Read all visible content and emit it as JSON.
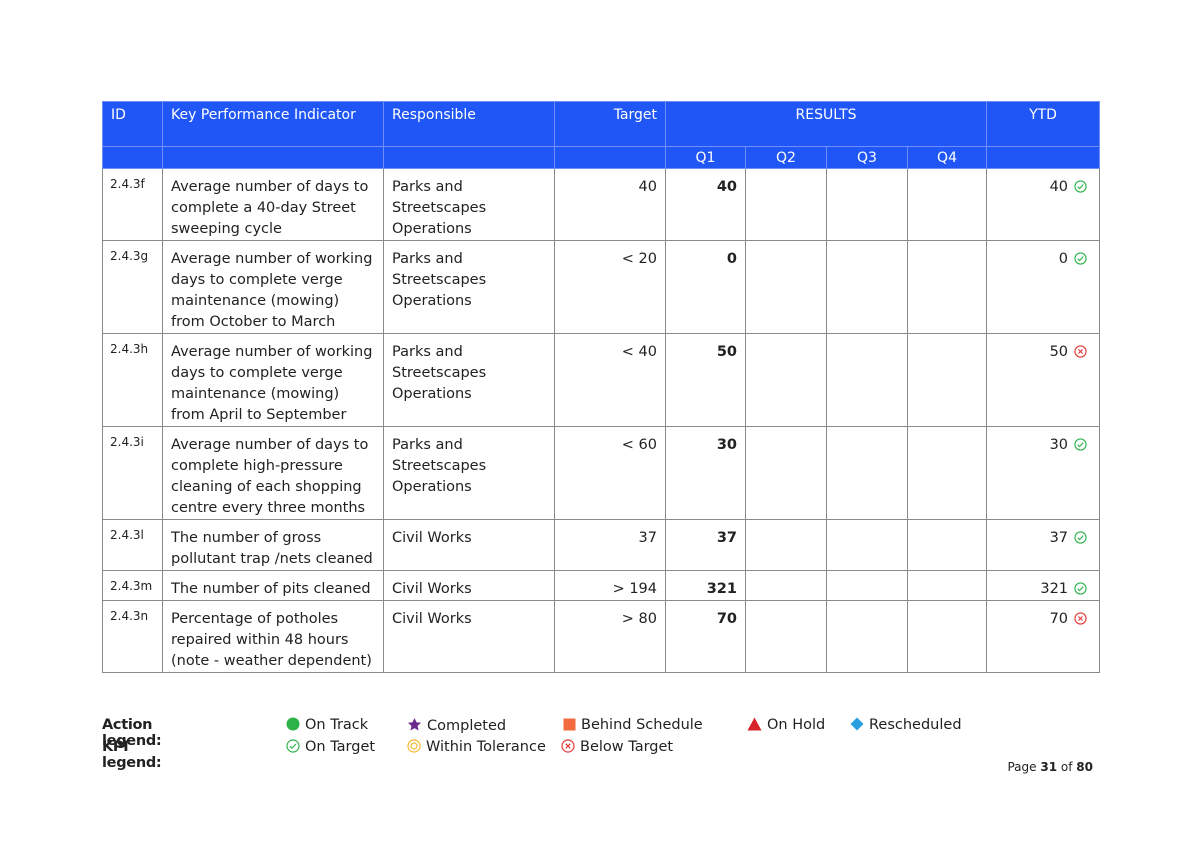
{
  "table": {
    "headers": {
      "id": "ID",
      "kpi": "Key Performance Indicator",
      "responsible": "Responsible",
      "target": "Target",
      "results": "RESULTS",
      "ytd": "YTD",
      "quarters": [
        "Q1",
        "Q2",
        "Q3",
        "Q4"
      ]
    },
    "rows": [
      {
        "id": "2.4.3f",
        "kpi": "Average number of days to complete a 40-day Street sweeping cycle",
        "responsible": "Parks and Streetscapes Operations",
        "target": "40",
        "q1": "40",
        "q2": "",
        "q3": "",
        "q4": "",
        "ytd": "40",
        "status": "on-target"
      },
      {
        "id": "2.4.3g",
        "kpi": "Average number of working days to complete verge maintenance (mowing) from October to March",
        "responsible": "Parks and Streetscapes Operations",
        "target": "< 20",
        "q1": "0",
        "q2": "",
        "q3": "",
        "q4": "",
        "ytd": "0",
        "status": "on-target"
      },
      {
        "id": "2.4.3h",
        "kpi": "Average number of working days to complete verge maintenance (mowing) from April to September",
        "responsible": "Parks and Streetscapes Operations",
        "target": "< 40",
        "q1": "50",
        "q2": "",
        "q3": "",
        "q4": "",
        "ytd": "50",
        "status": "below-target"
      },
      {
        "id": "2.4.3i",
        "kpi": "Average number of days to complete high-pressure cleaning of each shopping centre every three months",
        "responsible": "Parks and Streetscapes Operations",
        "target": "< 60",
        "q1": "30",
        "q2": "",
        "q3": "",
        "q4": "",
        "ytd": "30",
        "status": "on-target"
      },
      {
        "id": "2.4.3l",
        "kpi": "The number of gross pollutant trap /nets cleaned",
        "responsible": "Civil Works",
        "target": "37",
        "q1": "37",
        "q2": "",
        "q3": "",
        "q4": "",
        "ytd": "37",
        "status": "on-target"
      },
      {
        "id": "2.4.3m",
        "kpi": "The number of pits cleaned",
        "responsible": "Civil Works",
        "target": "> 194",
        "q1": "321",
        "q2": "",
        "q3": "",
        "q4": "",
        "ytd": "321",
        "status": "on-target"
      },
      {
        "id": "2.4.3n",
        "kpi": "Percentage of potholes repaired within 48 hours (note - weather dependent)",
        "responsible": "Civil Works",
        "target": "> 80",
        "q1": "70",
        "q2": "",
        "q3": "",
        "q4": "",
        "ytd": "70",
        "status": "below-target"
      }
    ]
  },
  "legend": {
    "action_title": "Action legend:",
    "kpi_title": "KPI legend:",
    "action_items": [
      {
        "label": "On Track",
        "icon": "green-circle-icon",
        "color": "#2db24a"
      },
      {
        "label": "Completed",
        "icon": "purple-star-icon",
        "color": "#6a2a8c"
      },
      {
        "label": "Behind Schedule",
        "icon": "orange-square-icon",
        "color": "#f26a3d"
      },
      {
        "label": "On Hold",
        "icon": "red-triangle-icon",
        "color": "#d7222a"
      },
      {
        "label": "Rescheduled",
        "icon": "blue-diamond-icon",
        "color": "#2a9fe0"
      }
    ],
    "kpi_items": [
      {
        "label": "On Target",
        "icon": "check-circle-icon",
        "color": "#2db24a"
      },
      {
        "label": "Within Tolerance",
        "icon": "target-circle-icon",
        "color": "#f5b82e"
      },
      {
        "label": "Below Target",
        "icon": "x-circle-icon",
        "color": "#e53935"
      }
    ]
  },
  "page": {
    "prefix": "Page",
    "current": "31",
    "of": "of",
    "total": "80"
  }
}
